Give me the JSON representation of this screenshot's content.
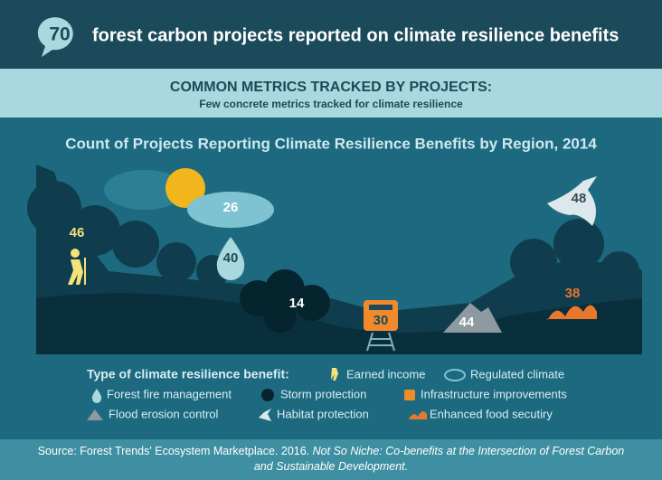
{
  "header": {
    "badge": "70",
    "title": "forest carbon projects reported on climate resilience benefits"
  },
  "subheader": {
    "title": "COMMON METRICS TRACKED BY PROJECTS:",
    "subtitle": "Few concrete metrics tracked for climate resilience"
  },
  "chart_title": "Count of Projects Reporting Climate Resilience Benefits by Region, 2014",
  "items": [
    {
      "value": 46,
      "label": "Earned income"
    },
    {
      "value": 26,
      "label": "Regulated climate"
    },
    {
      "value": 40,
      "label": "Forest fire management"
    },
    {
      "value": 14,
      "label": "Storm protection"
    },
    {
      "value": 30,
      "label": "Infrastructure improvements"
    },
    {
      "value": 44,
      "label": "Flood erosion control"
    },
    {
      "value": 48,
      "label": "Habitat protection"
    },
    {
      "value": 38,
      "label": "Enhanced food secutiry"
    }
  ],
  "legend_title": "Type of climate resilience benefit:",
  "source": {
    "text": "Source: Forest Trends' Ecosystem Marketplace. 2016.",
    "title": "Not So Niche: Co-benefits at the Intersection of Forest Carbon and Sustainable Development."
  }
}
